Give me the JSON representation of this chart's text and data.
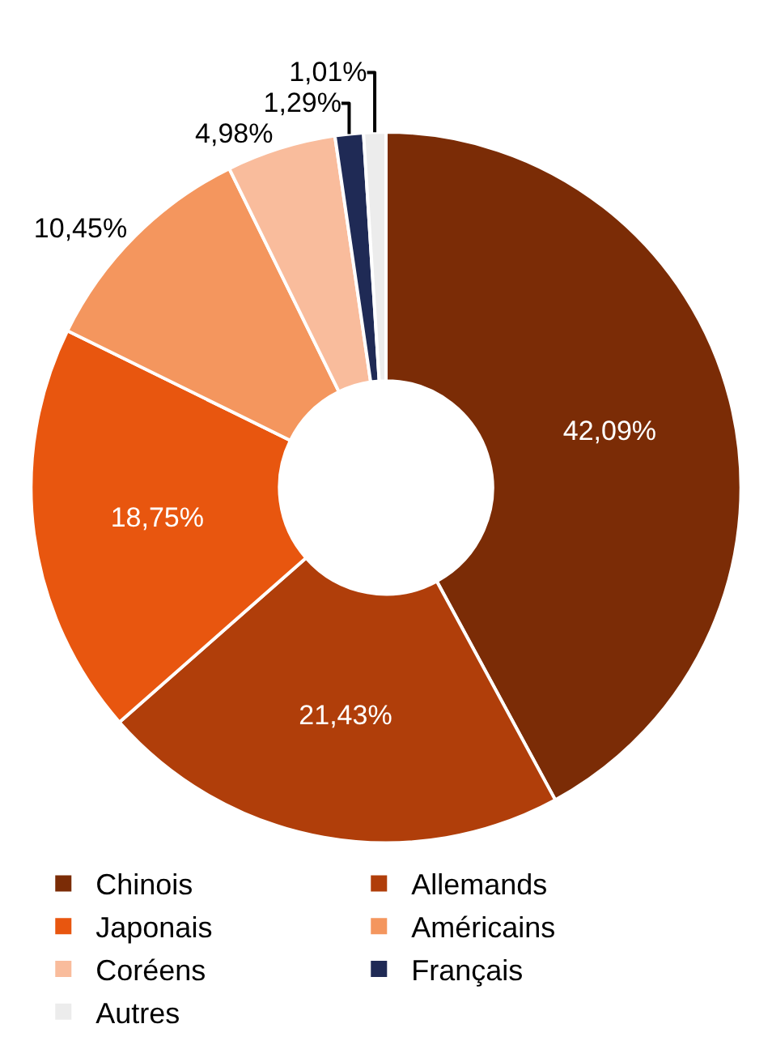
{
  "chart_data": {
    "type": "donut",
    "categories": [
      "Chinois",
      "Allemands",
      "Japonais",
      "Américains",
      "Coréens",
      "Français",
      "Autres"
    ],
    "values": [
      42.09,
      21.43,
      18.75,
      10.45,
      4.98,
      1.29,
      1.01
    ],
    "value_labels": [
      "42,09%",
      "21,43%",
      "18,75%",
      "10,45%",
      "4,98%",
      "1,29%",
      "1,01%"
    ],
    "colors": [
      "#7b2c06",
      "#b03e0a",
      "#e8560f",
      "#f4965e",
      "#f9bc9c",
      "#1f2a55",
      "#ececec"
    ],
    "legend": "bottom"
  }
}
